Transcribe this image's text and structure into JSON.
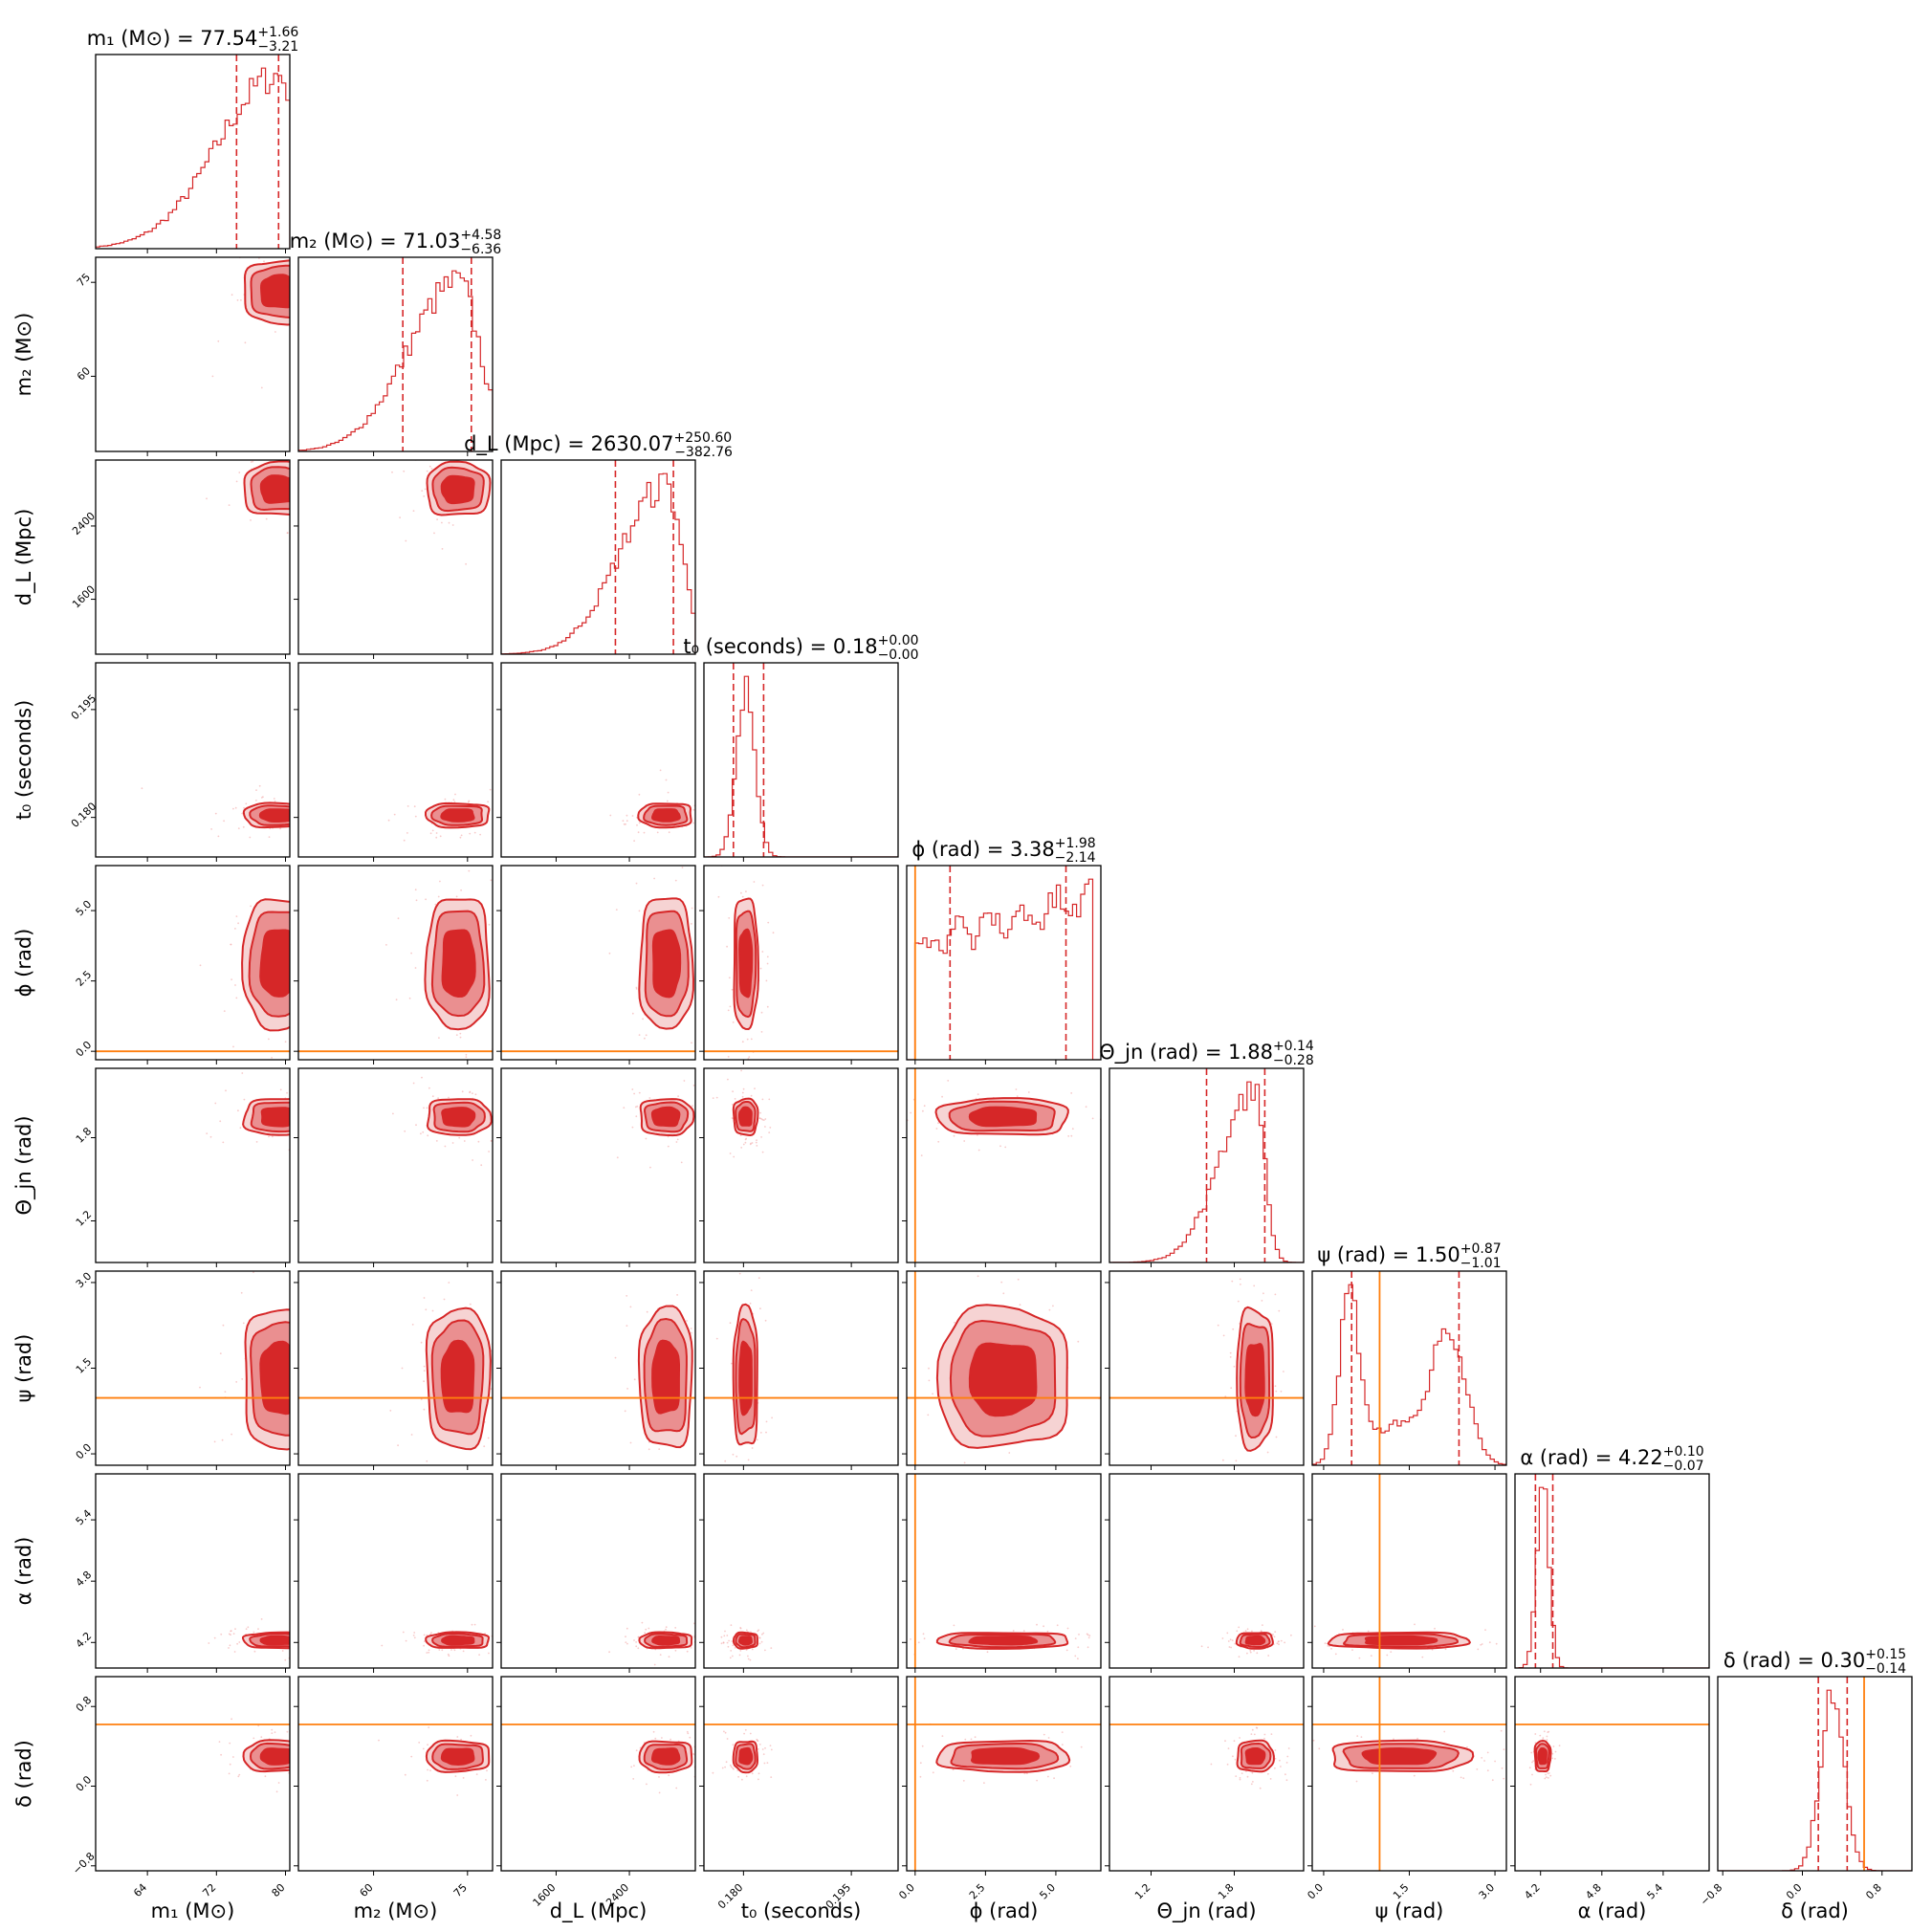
{
  "chart_data": {
    "type": "corner",
    "parameters": [
      {
        "key": "m1",
        "label": "m₁ (M⊙)",
        "title_main": "m₁ (M⊙) = 77.54",
        "plus": "+1.66",
        "minus": "−3.21",
        "median": 77.54,
        "range": [
          58,
          80.5
        ],
        "ticks": [
          64,
          72,
          80
        ],
        "tick_labels": [
          "64",
          "72",
          "80"
        ],
        "q_lo": 74.33,
        "q_hi": 79.2,
        "truth": null
      },
      {
        "key": "m2",
        "label": "m₂ (M⊙)",
        "title_main": "m₂ (M⊙) = 71.03",
        "plus": "+4.58",
        "minus": "−6.36",
        "median": 71.03,
        "range": [
          48,
          79
        ],
        "ticks": [
          60,
          75
        ],
        "tick_labels": [
          "60",
          "75"
        ],
        "q_lo": 64.67,
        "q_hi": 75.61,
        "truth": null
      },
      {
        "key": "dL",
        "label": "d_L (Mpc)",
        "title_main": "d_L (Mpc) = 2630.07",
        "plus": "+250.60",
        "minus": "−382.76",
        "median": 2630.07,
        "range": [
          1000,
          3120
        ],
        "ticks": [
          1600,
          2400
        ],
        "tick_labels": [
          "1600",
          "2400"
        ],
        "q_lo": 2247.31,
        "q_hi": 2880.67,
        "truth": null
      },
      {
        "key": "t0",
        "label": "t₀ (seconds)",
        "title_main": "t₀ (seconds) = 0.18",
        "plus": "+0.00",
        "minus": "−0.00",
        "median": 0.18,
        "range": [
          0.1745,
          0.2015
        ],
        "ticks": [
          0.18,
          0.195
        ],
        "tick_labels": [
          "0.180",
          "0.195"
        ],
        "q_lo": 0.1786,
        "q_hi": 0.1828,
        "truth": null
      },
      {
        "key": "phi",
        "label": "ϕ (rad)",
        "title_main": "ϕ (rad) = 3.38",
        "plus": "+1.98",
        "minus": "−2.14",
        "median": 3.38,
        "range": [
          -0.3,
          6.6
        ],
        "ticks": [
          0.0,
          2.5,
          5.0
        ],
        "tick_labels": [
          "0.0",
          "2.5",
          "5.0"
        ],
        "q_lo": 1.24,
        "q_hi": 5.36,
        "truth": 0.0
      },
      {
        "key": "theta",
        "label": "Θ_jn (rad)",
        "title_main": "Θ_jn (rad) = 1.88",
        "plus": "+0.14",
        "minus": "−0.28",
        "median": 1.88,
        "range": [
          0.9,
          2.3
        ],
        "ticks": [
          1.2,
          1.8
        ],
        "tick_labels": [
          "1.2",
          "1.8"
        ],
        "q_lo": 1.6,
        "q_hi": 2.02,
        "truth": null
      },
      {
        "key": "psi",
        "label": "ψ (rad)",
        "title_main": "ψ (rad) = 1.50",
        "plus": "+0.87",
        "minus": "−1.01",
        "median": 1.5,
        "range": [
          -0.2,
          3.2
        ],
        "ticks": [
          0.0,
          1.5,
          3.0
        ],
        "tick_labels": [
          "0.0",
          "1.5",
          "3.0"
        ],
        "q_lo": 0.49,
        "q_hi": 2.37,
        "truth": 0.98
      },
      {
        "key": "alpha",
        "label": "α (rad)",
        "title_main": "α (rad) = 4.22",
        "plus": "+0.10",
        "minus": "−0.07",
        "median": 4.22,
        "range": [
          3.95,
          5.85
        ],
        "ticks": [
          4.2,
          4.8,
          5.4
        ],
        "tick_labels": [
          "4.2",
          "4.8",
          "5.4"
        ],
        "q_lo": 4.15,
        "q_hi": 4.32,
        "truth": null
      },
      {
        "key": "delta",
        "label": "δ (rad)",
        "title_main": "δ (rad) = 0.30",
        "plus": "+0.15",
        "minus": "−0.14",
        "median": 0.3,
        "range": [
          -0.85,
          1.1
        ],
        "ticks": [
          -0.8,
          0.0,
          0.8
        ],
        "tick_labels": [
          "−0.8",
          "0.0",
          "0.8"
        ],
        "q_lo": 0.16,
        "q_hi": 0.45,
        "truth": 0.62
      }
    ],
    "marginals": {
      "m1": {
        "shape": "skew-right",
        "center": 79.2,
        "width": 2.5,
        "tail": 7
      },
      "m2": {
        "shape": "skew-right",
        "center": 73.5,
        "width": 3.5,
        "tail": 8
      },
      "dL": {
        "shape": "skew-right",
        "center": 2800,
        "width": 180,
        "tail": 500
      },
      "t0": {
        "shape": "gauss",
        "center": 0.1803,
        "width": 0.0013
      },
      "phi": {
        "shape": "flat",
        "low": 0.0,
        "high": 6.28
      },
      "theta": {
        "shape": "skew-right",
        "center": 1.95,
        "width": 0.07,
        "tail": 0.25
      },
      "psi": {
        "shape": "bimodal",
        "c1": 0.45,
        "c2": 2.2,
        "w1": 0.18,
        "w2": 0.3
      },
      "alpha": {
        "shape": "gauss",
        "center": 4.22,
        "width": 0.06
      },
      "delta": {
        "shape": "gauss",
        "center": 0.3,
        "width": 0.12
      }
    }
  }
}
